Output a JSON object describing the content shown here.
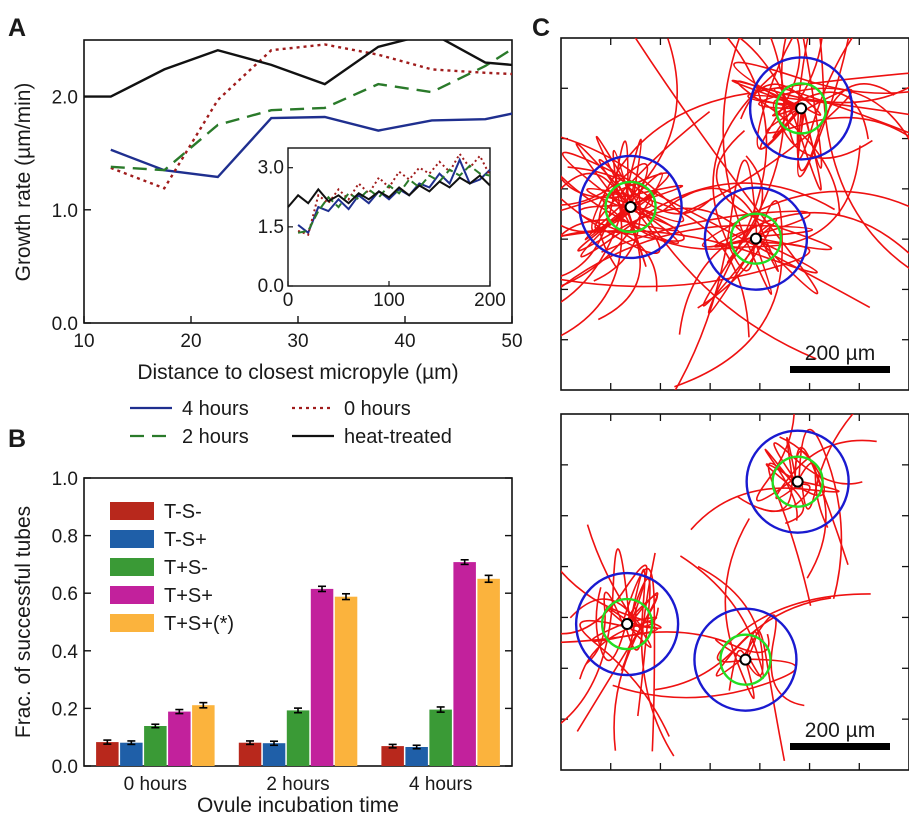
{
  "chart_data": [
    {
      "panel": "A",
      "type": "line",
      "xlabel": "Distance to closest micropyle (µm)",
      "ylabel": "Growth rate (µm/min)",
      "xlim": [
        10,
        50
      ],
      "ylim": [
        0,
        2.5
      ],
      "xticks": [
        "10",
        "20",
        "30",
        "40",
        "50"
      ],
      "yticks": [
        "0.0",
        "1.0",
        "2.0"
      ],
      "legend_position": "below-plot",
      "series": [
        {
          "name": "4 hours",
          "color": "#1f2f8f",
          "dash": "solid",
          "x": [
            12.5,
            17.5,
            22.5,
            27.5,
            32.5,
            37.5,
            42.5,
            47.5,
            50
          ],
          "y": [
            1.53,
            1.35,
            1.29,
            1.81,
            1.82,
            1.7,
            1.79,
            1.8,
            1.85
          ]
        },
        {
          "name": "0 hours",
          "color": "#a01c1c",
          "dash": "dotted",
          "x": [
            12.5,
            17.5,
            22.5,
            27.5,
            32.5,
            37.5,
            42.5,
            47.5,
            50
          ],
          "y": [
            1.37,
            1.19,
            1.97,
            2.41,
            2.46,
            2.37,
            2.24,
            2.21,
            2.2
          ]
        },
        {
          "name": "2 hours",
          "color": "#2a7a2a",
          "dash": "dashed",
          "x": [
            12.5,
            17.5,
            22.5,
            27.5,
            32.5,
            37.5,
            42.5,
            47.5,
            50
          ],
          "y": [
            1.38,
            1.35,
            1.75,
            1.88,
            1.9,
            2.11,
            2.04,
            2.27,
            2.42
          ]
        },
        {
          "name": "heat-treated",
          "color": "#111111",
          "dash": "solid",
          "x": [
            10,
            12.5,
            17.5,
            22.5,
            27.5,
            32.5,
            37.5,
            42.5,
            47.5,
            50
          ],
          "y": [
            2.0,
            2.0,
            2.24,
            2.41,
            2.28,
            2.11,
            2.44,
            2.56,
            2.3,
            2.28
          ]
        }
      ],
      "inset": {
        "type": "line",
        "xlim": [
          0,
          200
        ],
        "ylim": [
          0,
          3.5
        ],
        "xticks": [
          "0",
          "100",
          "200"
        ],
        "yticks": [
          "0.0",
          "1.5",
          "3.0"
        ],
        "series": [
          {
            "name": "4 hours",
            "color": "#1f2f8f",
            "dash": "solid",
            "x": [
              10,
              20,
              30,
              40,
              50,
              60,
              70,
              80,
              90,
              100,
              110,
              120,
              130,
              140,
              150,
              160,
              170,
              180,
              190,
              200
            ],
            "y": [
              1.55,
              1.35,
              2.0,
              1.9,
              2.2,
              1.95,
              2.3,
              2.1,
              2.4,
              2.2,
              2.45,
              2.3,
              2.6,
              2.5,
              2.85,
              2.6,
              3.2,
              2.6,
              2.7,
              2.95
            ]
          },
          {
            "name": "0 hours",
            "color": "#a01c1c",
            "dash": "dotted",
            "x": [
              10,
              20,
              30,
              40,
              50,
              60,
              70,
              80,
              90,
              100,
              110,
              120,
              130,
              140,
              150,
              160,
              170,
              180,
              190,
              200
            ],
            "y": [
              1.4,
              1.3,
              2.3,
              2.1,
              2.45,
              2.2,
              2.6,
              2.35,
              2.75,
              2.5,
              2.9,
              2.7,
              3.0,
              2.85,
              3.15,
              2.9,
              3.35,
              3.0,
              3.3,
              2.8
            ]
          },
          {
            "name": "2 hours",
            "color": "#2a7a2a",
            "dash": "dashed",
            "x": [
              10,
              20,
              30,
              40,
              50,
              60,
              70,
              80,
              90,
              100,
              110,
              120,
              130,
              140,
              150,
              160,
              170,
              180,
              190,
              200
            ],
            "y": [
              1.35,
              1.4,
              1.9,
              2.25,
              2.0,
              2.35,
              2.2,
              2.45,
              2.25,
              2.55,
              2.35,
              2.7,
              2.5,
              2.8,
              2.65,
              2.95,
              2.8,
              3.05,
              2.85,
              2.8
            ]
          },
          {
            "name": "heat-treated",
            "color": "#111111",
            "dash": "solid",
            "x": [
              0,
              10,
              20,
              30,
              40,
              50,
              60,
              70,
              80,
              90,
              100,
              110,
              120,
              130,
              140,
              150,
              160,
              170,
              180,
              190,
              200
            ],
            "y": [
              2.0,
              2.3,
              2.1,
              2.45,
              2.15,
              2.3,
              2.1,
              2.35,
              2.2,
              2.4,
              2.25,
              2.5,
              2.3,
              2.55,
              2.4,
              2.65,
              2.5,
              2.75,
              2.6,
              2.8,
              2.55
            ]
          }
        ]
      }
    },
    {
      "panel": "B",
      "type": "bar",
      "xlabel": "Ovule incubation time",
      "ylabel": "Frac. of successful tubes",
      "ylim": [
        0,
        1.0
      ],
      "yticks": [
        "0.0",
        "0.2",
        "0.4",
        "0.6",
        "0.8",
        "1.0"
      ],
      "categories": [
        "0 hours",
        "2 hours",
        "4 hours"
      ],
      "legend_position": "top-left",
      "series": [
        {
          "name": "T-S-",
          "color": "#b8281c",
          "values": [
            0.083,
            0.081,
            0.069
          ],
          "errors": [
            0.007,
            0.006,
            0.006
          ]
        },
        {
          "name": "T-S+",
          "color": "#1f5fa8",
          "values": [
            0.081,
            0.079,
            0.066
          ],
          "errors": [
            0.006,
            0.007,
            0.006
          ]
        },
        {
          "name": "T+S-",
          "color": "#3a9a36",
          "values": [
            0.139,
            0.193,
            0.196
          ],
          "errors": [
            0.006,
            0.008,
            0.009
          ]
        },
        {
          "name": "T+S+",
          "color": "#c2219c",
          "values": [
            0.189,
            0.615,
            0.708
          ],
          "errors": [
            0.007,
            0.009,
            0.008
          ]
        },
        {
          "name": "T+S+(*)",
          "color": "#fbb33d",
          "values": [
            0.211,
            0.588,
            0.65
          ],
          "errors": [
            0.009,
            0.01,
            0.012
          ]
        }
      ]
    },
    {
      "panel": "C",
      "type": "trajectory_map",
      "scale_bar_label": "200 µm",
      "colors": {
        "trajectory": "#ee1111",
        "outer_ring": "#1a1ad0",
        "inner_ring": "#22dd22"
      },
      "subpanels": [
        {
          "ovules": [
            {
              "name": "ovule-top-right",
              "x": 0.69,
              "y": 0.2
            },
            {
              "name": "ovule-left",
              "x": 0.2,
              "y": 0.48
            },
            {
              "name": "ovule-middle",
              "x": 0.56,
              "y": 0.57
            }
          ]
        },
        {
          "ovules": [
            {
              "name": "ovule-top-right",
              "x": 0.68,
              "y": 0.19
            },
            {
              "name": "ovule-left",
              "x": 0.19,
              "y": 0.59
            },
            {
              "name": "ovule-middle",
              "x": 0.53,
              "y": 0.69
            }
          ]
        }
      ]
    }
  ],
  "panels": {
    "a": "A",
    "b": "B",
    "c": "C"
  }
}
